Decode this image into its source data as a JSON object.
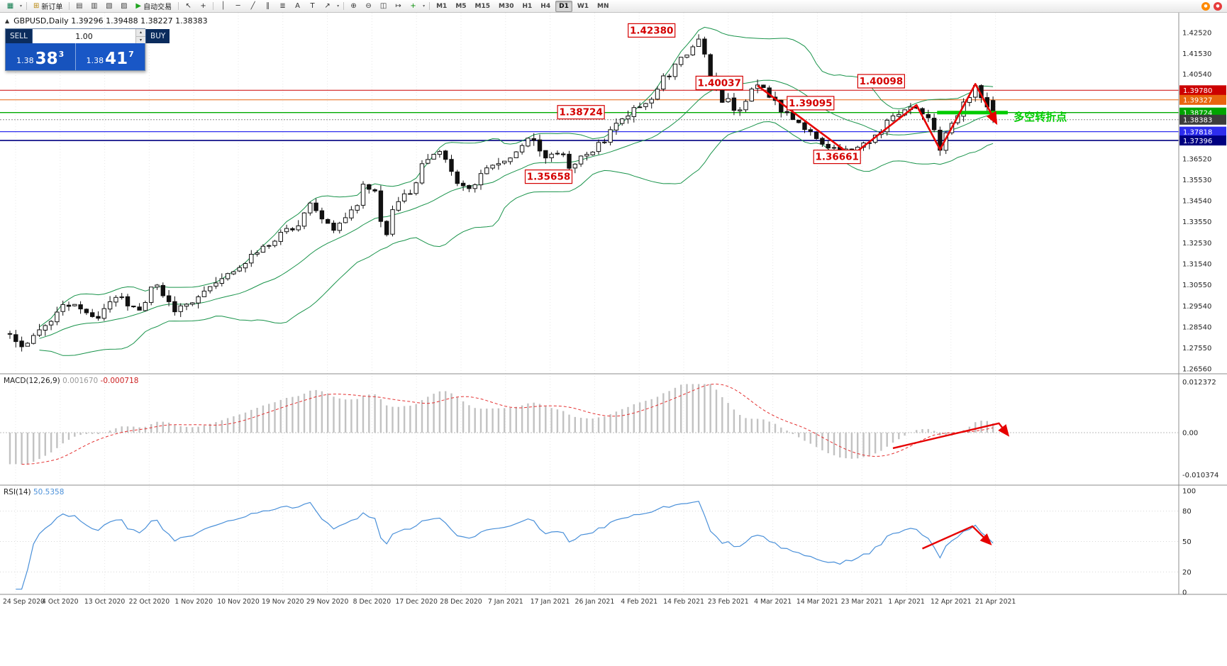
{
  "toolbar": {
    "items": [
      {
        "type": "icon",
        "name": "new-chart-icon",
        "glyph": "▦",
        "color": "#0a7a4a"
      },
      {
        "type": "caret",
        "name": "new-chart-caret",
        "glyph": "▾"
      },
      {
        "type": "sep"
      },
      {
        "type": "labeled",
        "name": "new-order-button",
        "glyph": "⊞",
        "glyph_color": "#b8860b",
        "label": "新订单"
      },
      {
        "type": "sep"
      },
      {
        "type": "icon",
        "name": "market-watch-icon",
        "glyph": "▤",
        "color": "#444"
      },
      {
        "type": "icon",
        "name": "data-window-icon",
        "glyph": "▥",
        "color": "#444"
      },
      {
        "type": "icon",
        "name": "navigator-icon",
        "glyph": "▧",
        "color": "#444"
      },
      {
        "type": "icon",
        "name": "terminal-icon",
        "glyph": "▨",
        "color": "#444"
      },
      {
        "type": "labeled",
        "name": "autotrading-button",
        "glyph": "▶",
        "glyph_color": "#1fa41f",
        "label": "自动交易"
      },
      {
        "type": "sep"
      },
      {
        "type": "icon",
        "name": "cursor-icon",
        "glyph": "↖",
        "color": "#333"
      },
      {
        "type": "icon",
        "name": "crosshair-icon",
        "glyph": "+",
        "color": "#333"
      },
      {
        "type": "sep"
      },
      {
        "type": "icon",
        "name": "vertical-line-icon",
        "glyph": "│",
        "color": "#333"
      },
      {
        "type": "icon",
        "name": "horizontal-line-icon",
        "glyph": "─",
        "color": "#333"
      },
      {
        "type": "icon",
        "name": "trendline-icon",
        "glyph": "╱",
        "color": "#333"
      },
      {
        "type": "icon",
        "name": "equidistant-channel-icon",
        "glyph": "∥",
        "color": "#333"
      },
      {
        "type": "icon",
        "name": "fibonacci-icon",
        "glyph": "≣",
        "color": "#333"
      },
      {
        "type": "icon",
        "name": "text-icon",
        "glyph": "A",
        "color": "#333"
      },
      {
        "type": "icon",
        "name": "text-label-icon",
        "glyph": "T",
        "color": "#333"
      },
      {
        "type": "icon",
        "name": "arrow-tools-icon",
        "glyph": "↗",
        "color": "#333"
      },
      {
        "type": "caret",
        "name": "arrow-tools-caret",
        "glyph": "▾"
      },
      {
        "type": "sep"
      },
      {
        "type": "icon",
        "name": "zoom-in-icon",
        "glyph": "⊕",
        "color": "#333"
      },
      {
        "type": "icon",
        "name": "zoom-out-icon",
        "glyph": "⊖",
        "color": "#333"
      },
      {
        "type": "icon",
        "name": "tile-windows-icon",
        "glyph": "◫",
        "color": "#333"
      },
      {
        "type": "icon",
        "name": "auto-scroll-icon",
        "glyph": "↦",
        "color": "#333"
      },
      {
        "type": "icon",
        "name": "indicators-icon",
        "glyph": "+",
        "color": "#0a8f0a"
      },
      {
        "type": "caret",
        "name": "indicators-caret",
        "glyph": "▾"
      }
    ],
    "timeframes": [
      "M1",
      "M5",
      "M15",
      "M30",
      "H1",
      "H4",
      "D1",
      "W1",
      "MN"
    ],
    "active_timeframe": "D1",
    "right_icons": [
      {
        "name": "overlay-orange-icon",
        "bg": "#ff8a00",
        "glyph": "●"
      },
      {
        "name": "overlay-red-icon",
        "bg": "#e63c3c",
        "glyph": "●"
      }
    ]
  },
  "chart": {
    "collapse_glyph": "▲",
    "symbol_info": "GBPUSD,Daily  1.39296 1.39488 1.38227 1.38383"
  },
  "trade_panel": {
    "sell_label": "SELL",
    "buy_label": "BUY",
    "volume": "1.00",
    "spin_up": "▴",
    "spin_down": "▾",
    "sell_price": {
      "prefix": "1.38",
      "big": "38",
      "sup": "3"
    },
    "buy_price": {
      "prefix": "1.38",
      "big": "41",
      "sup": "7"
    }
  },
  "chart_data": {
    "type": "candlestick",
    "symbol": "GBPUSD",
    "period": "Daily",
    "last_ohlc": {
      "open": 1.39296,
      "high": 1.39488,
      "low": 1.38227,
      "close": 1.38383
    },
    "bars": 168,
    "price_path": [
      [
        0.0,
        1.282
      ],
      [
        0.012,
        1.275
      ],
      [
        0.04,
        1.289
      ],
      [
        0.062,
        1.2958
      ],
      [
        0.085,
        1.2902
      ],
      [
        0.108,
        1.2995
      ],
      [
        0.128,
        1.295
      ],
      [
        0.148,
        1.3035
      ],
      [
        0.166,
        1.2945
      ],
      [
        0.188,
        1.2985
      ],
      [
        0.208,
        1.3058
      ],
      [
        0.226,
        1.314
      ],
      [
        0.246,
        1.3175
      ],
      [
        0.263,
        1.3245
      ],
      [
        0.278,
        1.331
      ],
      [
        0.293,
        1.333
      ],
      [
        0.305,
        1.3442
      ],
      [
        0.318,
        1.336
      ],
      [
        0.333,
        1.3322
      ],
      [
        0.348,
        1.34
      ],
      [
        0.362,
        1.3542
      ],
      [
        0.374,
        1.3495
      ],
      [
        0.38,
        1.3268
      ],
      [
        0.393,
        1.3445
      ],
      [
        0.406,
        1.3505
      ],
      [
        0.423,
        1.3635
      ],
      [
        0.438,
        1.3668
      ],
      [
        0.453,
        1.3562
      ],
      [
        0.468,
        1.353
      ],
      [
        0.485,
        1.359
      ],
      [
        0.501,
        1.3645
      ],
      [
        0.516,
        1.369
      ],
      [
        0.531,
        1.3735
      ],
      [
        0.546,
        1.366
      ],
      [
        0.558,
        1.3695
      ],
      [
        0.57,
        1.3592
      ],
      [
        0.583,
        1.3655
      ],
      [
        0.598,
        1.3725
      ],
      [
        0.613,
        1.3795
      ],
      [
        0.628,
        1.3855
      ],
      [
        0.641,
        1.39
      ],
      [
        0.655,
        1.3958
      ],
      [
        0.668,
        1.404
      ],
      [
        0.684,
        1.413
      ],
      [
        0.7,
        1.4228
      ],
      [
        0.708,
        1.414
      ],
      [
        0.716,
        1.399
      ],
      [
        0.724,
        1.391
      ],
      [
        0.731,
        1.3945
      ],
      [
        0.738,
        1.3882
      ],
      [
        0.746,
        1.3925
      ],
      [
        0.753,
        1.3975
      ],
      [
        0.76,
        1.4
      ],
      [
        0.772,
        1.3955
      ],
      [
        0.784,
        1.39
      ],
      [
        0.796,
        1.3852
      ],
      [
        0.81,
        1.379
      ],
      [
        0.825,
        1.374
      ],
      [
        0.84,
        1.37
      ],
      [
        0.856,
        1.367
      ],
      [
        0.868,
        1.3722
      ],
      [
        0.88,
        1.3772
      ],
      [
        0.895,
        1.383
      ],
      [
        0.91,
        1.388
      ],
      [
        0.922,
        1.3906
      ],
      [
        0.932,
        1.385
      ],
      [
        0.94,
        1.378
      ],
      [
        0.947,
        1.37
      ],
      [
        0.955,
        1.379
      ],
      [
        0.963,
        1.387
      ],
      [
        0.972,
        1.394
      ],
      [
        0.982,
        1.4
      ],
      [
        0.988,
        1.3942
      ],
      [
        0.994,
        1.3885
      ],
      [
        1.0,
        1.3838
      ]
    ],
    "forced_extremes": [
      {
        "i": 95,
        "low": 1.35658
      },
      {
        "i": 117,
        "high": 1.4238
      },
      {
        "i": 127,
        "high": 1.40037
      },
      {
        "i": 143,
        "low": 1.36661
      },
      {
        "i": 154,
        "high": 1.39095
      },
      {
        "i": 164,
        "high": 1.40098
      }
    ],
    "bollinger": {
      "period": 20,
      "deviation": 2,
      "color": "#18934a"
    },
    "price_axis_labels": [
      "1.42520",
      "1.41530",
      "1.40540",
      "1.36520",
      "1.35530",
      "1.34540",
      "1.33550",
      "1.32530",
      "1.31540",
      "1.30550",
      "1.29540",
      "1.28540",
      "1.27550",
      "1.26560"
    ],
    "hlines": [
      {
        "price": 1.3978,
        "label": "1.39780",
        "color": "#cc0000",
        "tag_bg": "#cc0000",
        "width": 1,
        "dash": ""
      },
      {
        "price": 1.39327,
        "label": "1.39327",
        "color": "#e8650e",
        "tag_bg": "#e8650e",
        "width": 1,
        "dash": ""
      },
      {
        "price": 1.38724,
        "label": "1.38724",
        "color": "#00aa00",
        "tag_bg": "#00a400",
        "width": 1.3,
        "dash": ""
      },
      {
        "price": 1.38383,
        "label": "1.38383",
        "color": "#888888",
        "tag_bg": "#3c3c3c",
        "width": 1,
        "dash": "2,2"
      },
      {
        "price": 1.37818,
        "label": "1.37818",
        "color": "#2d2dee",
        "tag_bg": "#2d2dee",
        "width": 1.3,
        "dash": ""
      },
      {
        "price": 1.37396,
        "label": "1.37396",
        "color": "#000080",
        "tag_bg": "#000080",
        "width": 1.6,
        "dash": ""
      }
    ],
    "price_tags": [
      {
        "text": "1.42380",
        "bar": 109,
        "price": 1.4262
      },
      {
        "text": "1.40037",
        "bar": 120.5,
        "price": 1.4013
      },
      {
        "text": "1.38724",
        "bar": 97,
        "price": 1.3874
      },
      {
        "text": "1.39095",
        "bar": 136,
        "price": 1.3917
      },
      {
        "text": "1.40098",
        "bar": 148,
        "price": 1.4021
      },
      {
        "text": "1.36661",
        "bar": 140.5,
        "price": 1.3662
      },
      {
        "text": "1.35658",
        "bar": 91.5,
        "price": 1.3568
      }
    ],
    "zigzag": {
      "color": "#e60000",
      "width": 2.6,
      "points": [
        [
          127,
          1.4
        ],
        [
          143,
          1.3668
        ],
        [
          154,
          1.3908
        ],
        [
          158,
          1.3697
        ],
        [
          164,
          1.4008
        ],
        [
          167.5,
          1.3825
        ]
      ]
    },
    "support_segment": {
      "bar_from": 157.5,
      "bar_to": 169.5,
      "price": 1.38724,
      "color": "#00cc00",
      "width": 5
    },
    "note": {
      "text": "多空转折点",
      "bar": 170.5,
      "price": 1.3835,
      "color": "#00cc00",
      "size": 15
    },
    "macd": {
      "title": "MACD(12,26,9)",
      "value_main": "0.001670",
      "value_signal": "-0.000718",
      "axis": [
        {
          "v": 0.012372,
          "t": "0.012372"
        },
        {
          "v": 0,
          "t": "0.00"
        },
        {
          "v": -0.010374,
          "t": "-0.010374"
        }
      ],
      "arrow": [
        [
          150,
          -0.0038
        ],
        [
          168,
          0.0023
        ],
        [
          169.5,
          -0.0005
        ]
      ]
    },
    "rsi": {
      "title": "RSI(14)",
      "value": "50.5358",
      "period": 14,
      "axis": [
        {
          "v": 100,
          "t": "100"
        },
        {
          "v": 80,
          "t": "80"
        },
        {
          "v": 50,
          "t": "50"
        },
        {
          "v": 20,
          "t": "20"
        },
        {
          "v": 0,
          "t": "0"
        }
      ],
      "levels": [
        80,
        50,
        20
      ],
      "arrow": [
        [
          155,
          43
        ],
        [
          163.5,
          65
        ],
        [
          166.5,
          48
        ]
      ]
    },
    "time_axis": [
      "24 Sep 2020",
      "4 Oct 2020",
      "13 Oct 2020",
      "22 Oct 2020",
      "1 Nov 2020",
      "10 Nov 2020",
      "19 Nov 2020",
      "29 Nov 2020",
      "8 Dec 2020",
      "17 Dec 2020",
      "28 Dec 2020",
      "7 Jan 2021",
      "17 Jan 2021",
      "26 Jan 2021",
      "4 Feb 2021",
      "14 Feb 2021",
      "23 Feb 2021",
      "4 Mar 2021",
      "14 Mar 2021",
      "23 Mar 2021",
      "1 Apr 2021",
      "12 Apr 2021",
      "21 Apr 2021"
    ]
  }
}
